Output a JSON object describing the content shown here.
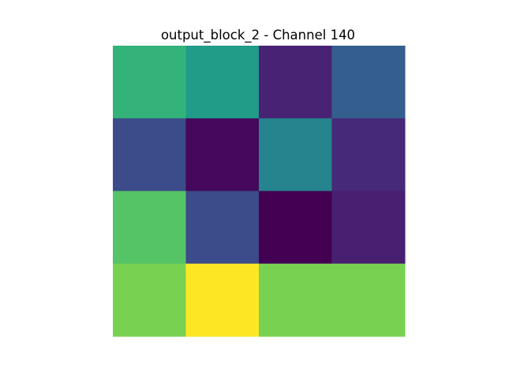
{
  "chart_data": {
    "type": "heatmap",
    "title": "output_block_2 - Channel 140",
    "xlabel": "",
    "ylabel": "",
    "colormap": "viridis",
    "axes_visible": false,
    "grid": false,
    "rows": 4,
    "cols": 4,
    "values": [
      [
        0.65,
        0.55,
        0.1,
        0.3
      ],
      [
        0.23,
        0.02,
        0.45,
        0.12
      ],
      [
        0.73,
        0.23,
        0.0,
        0.09
      ],
      [
        0.8,
        1.0,
        0.8,
        0.8
      ]
    ]
  }
}
